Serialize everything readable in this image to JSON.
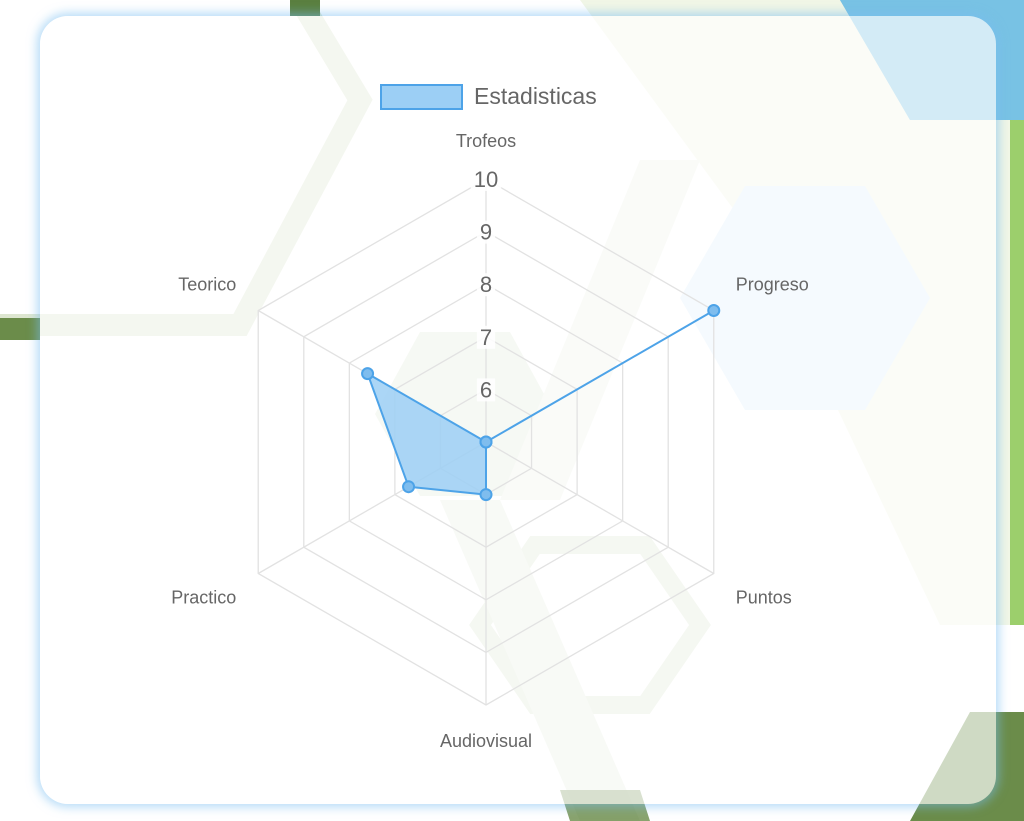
{
  "chart_data": {
    "type": "radar",
    "labels": [
      "Trofeos",
      "Progreso",
      "Puntos",
      "Audiovisual",
      "Practico",
      "Teorico"
    ],
    "series": [
      {
        "name": "Estadisticas",
        "values": [
          5,
          10,
          5,
          6,
          6.7,
          7.6
        ],
        "border_color": "#4da3e8",
        "fill_color": "#9ccff5"
      }
    ],
    "r_min": 5,
    "r_max": 10,
    "ticks": [
      "6",
      "7",
      "8",
      "9",
      "10"
    ],
    "grid": true,
    "legend_position": "top"
  },
  "colors": {
    "grid": "#e2e2e2",
    "label": "#666666",
    "accent": "#4da3e8"
  }
}
